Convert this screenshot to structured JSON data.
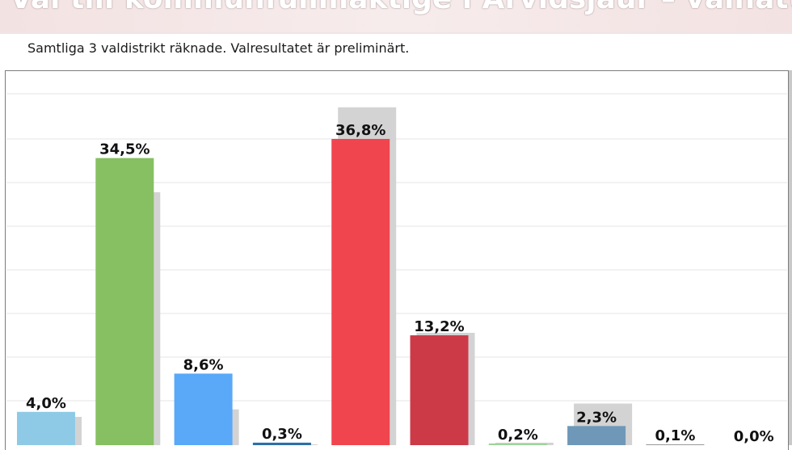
{
  "header": {
    "title": "Val till kommunfullmäktige i Arvidsjaur – valnatt",
    "subtitle": "Samtliga 3 valdistrikt räknade. Valresultatet är preliminärt."
  },
  "colors": {
    "previous": "#d3d3d3",
    "gridline": "#e4e4e4",
    "bars": [
      "#8ecae6",
      "#86c062",
      "#5aa8f8",
      "#2d6fa8",
      "#f0454f",
      "#cc3a48",
      "#9ed39a",
      "#6f98b8",
      "#9a9a9a",
      "#d0d0d0"
    ]
  },
  "chart_data": {
    "type": "bar",
    "title": "Val till kommunfullmäktige i Arvidsjaur – valnatt",
    "subtitle": "Samtliga 3 valdistrikt räknade. Valresultatet är preliminärt.",
    "xlabel": "",
    "ylabel": "",
    "ylim": [
      0,
      45
    ],
    "grid": true,
    "categories": [
      "",
      "",
      "",
      "",
      "",
      "",
      "",
      "",
      "",
      ""
    ],
    "series": [
      {
        "values": [
          4.0,
          34.5,
          8.6,
          0.3,
          36.8,
          13.2,
          0.2,
          2.3,
          0.1,
          0.0
        ]
      },
      {
        "values": [
          3.4,
          30.4,
          4.3,
          0.1,
          40.6,
          13.5,
          0.3,
          5.0,
          0.0,
          0.0
        ]
      }
    ],
    "data_labels": [
      "4,0%",
      "34,5%",
      "8,6%",
      "0,3%",
      "36,8%",
      "13,2%",
      "0,2%",
      "2,3%",
      "0,1%",
      "0,0%"
    ]
  }
}
